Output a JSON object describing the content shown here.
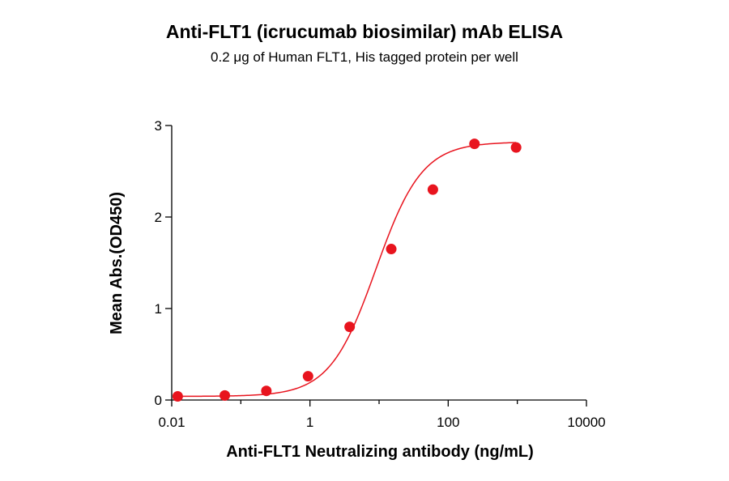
{
  "chart_data": {
    "type": "scatter",
    "title": "Anti-FLT1 (icrucumab biosimilar) mAb ELISA",
    "subtitle": "0.2 μg of Human FLT1, His tagged protein per well",
    "xlabel": "Anti-FLT1 Neutralizing antibody (ng/mL)",
    "ylabel": "Mean Abs.(OD450)",
    "x_scale": "log10",
    "xlim": [
      0.01,
      10000
    ],
    "ylim": [
      0,
      3
    ],
    "x_ticks": [
      0.01,
      1,
      100,
      10000
    ],
    "x_tick_labels": [
      "0.01",
      "1",
      "100",
      "10000"
    ],
    "y_ticks": [
      0,
      1,
      2,
      3
    ],
    "y_tick_labels": [
      "0",
      "1",
      "2",
      "3"
    ],
    "grid": false,
    "marker_color": "#e8141e",
    "curve_color": "#e8141e",
    "points": [
      {
        "x": 0.0122,
        "y": 0.04
      },
      {
        "x": 0.0586,
        "y": 0.05
      },
      {
        "x": 0.234,
        "y": 0.1
      },
      {
        "x": 0.938,
        "y": 0.26
      },
      {
        "x": 3.75,
        "y": 0.8
      },
      {
        "x": 15.0,
        "y": 1.65
      },
      {
        "x": 60.0,
        "y": 2.3
      },
      {
        "x": 240.0,
        "y": 2.8
      },
      {
        "x": 960.0,
        "y": 2.76
      }
    ],
    "fit": {
      "model": "4PL",
      "bottom": 0.04,
      "top": 2.82,
      "ec50": 9.0,
      "hill": 1.3,
      "x_range": [
        0.0122,
        960.0
      ]
    }
  }
}
